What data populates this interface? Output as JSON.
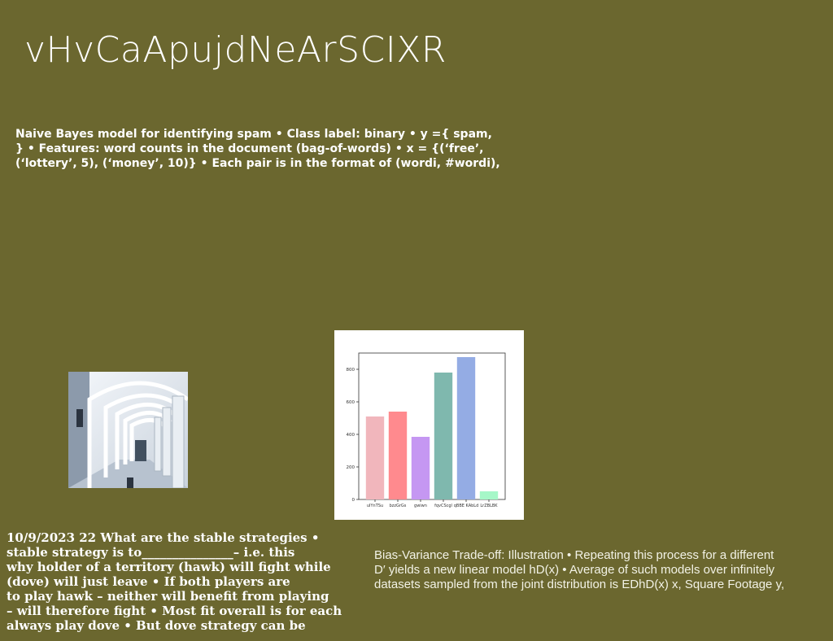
{
  "slide": {
    "title": "vHvCaApujdNeArSCIXR",
    "paragraph1_lines": [
      "Naive Bayes model for identifying spam • Class label: binary • y ={ spam,",
      "} • Features: word counts in the document (bag-of-words) • x = {(‘free’,",
      "(‘lottery’, 5), (‘money’, 10)} • Each pair is in the format of (wordi, #wordi),"
    ],
    "paragraph2_lines": [
      "10/9/2023 22 What are the stable strategies •",
      "stable strategy is to_______________– i.e. this",
      "why holder of a territory (hawk) will fight while",
      "(dove) will just leave • If both players are",
      "to play hawk – neither will benefit from playing",
      "– will therefore fight • Most fit overall is for each",
      "always play dove • But dove strategy can be"
    ],
    "paragraph3_lines": [
      "Bias-Variance Trade-off: Illustration • Repeating this process for a different",
      "D′ yields a new linear model hD(x) • Average of such models over infinitely",
      "datasets sampled from the joint distribution is EDhD(x) x, Square Footage y,"
    ]
  },
  "chart_data": {
    "type": "bar",
    "categories": [
      "uIYnTSu",
      "bzzGrGs",
      "gwiwn",
      "fqvCScgl",
      "qBBE KAbLd",
      "LrZBLBK"
    ],
    "values": [
      510,
      540,
      385,
      780,
      875,
      50
    ],
    "colors": [
      "#f1b6bc",
      "#ff8a8e",
      "#c597f2",
      "#7fb8ae",
      "#94ace4",
      "#a6f7c8"
    ],
    "yticks": [
      0,
      200,
      400,
      600,
      800
    ],
    "ylim": [
      0,
      900
    ],
    "grid": false
  }
}
